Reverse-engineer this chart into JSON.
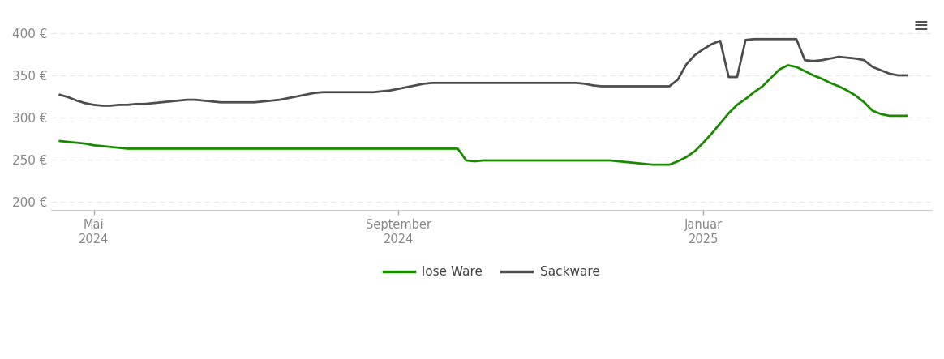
{
  "background_color": "#ffffff",
  "grid_color": "#e8e8e8",
  "ylim": [
    190,
    425
  ],
  "yticks": [
    200,
    250,
    300,
    350,
    400
  ],
  "ytick_labels": [
    "200 €",
    "250 €",
    "300 €",
    "350 €",
    "400 €"
  ],
  "xtick_positions": [
    4,
    40,
    76
  ],
  "xtick_labels": [
    "Mai\n2024",
    "September\n2024",
    "Januar\n2025"
  ],
  "lose_ware_color": "#1a8a00",
  "sackware_color": "#4d4d4d",
  "lose_ware_lw": 2.0,
  "sackware_lw": 2.0,
  "legend_labels": [
    "lose Ware",
    "Sackware"
  ],
  "xlim": [
    -1,
    103
  ],
  "lose_ware_x": [
    0,
    1,
    2,
    3,
    4,
    5,
    6,
    7,
    8,
    9,
    10,
    11,
    12,
    13,
    14,
    15,
    16,
    17,
    18,
    19,
    20,
    21,
    22,
    23,
    24,
    25,
    26,
    27,
    28,
    29,
    30,
    31,
    32,
    33,
    34,
    35,
    36,
    37,
    38,
    39,
    40,
    41,
    42,
    43,
    44,
    45,
    46,
    47,
    48,
    49,
    50,
    51,
    52,
    53,
    54,
    55,
    56,
    57,
    58,
    59,
    60,
    61,
    62,
    63,
    64,
    65,
    66,
    67,
    68,
    69,
    70,
    71,
    72,
    73,
    74,
    75,
    76,
    77,
    78,
    79,
    80,
    81,
    82,
    83,
    84,
    85,
    86,
    87,
    88,
    89,
    90,
    91,
    92,
    93,
    94,
    95,
    96,
    97,
    98,
    99,
    100
  ],
  "lose_ware_y": [
    272,
    271,
    270,
    269,
    267,
    266,
    265,
    264,
    263,
    263,
    263,
    263,
    263,
    263,
    263,
    263,
    263,
    263,
    263,
    263,
    263,
    263,
    263,
    263,
    263,
    263,
    263,
    263,
    263,
    263,
    263,
    263,
    263,
    263,
    263,
    263,
    263,
    263,
    263,
    263,
    263,
    263,
    263,
    263,
    263,
    263,
    263,
    263,
    249,
    248,
    249,
    249,
    249,
    249,
    249,
    249,
    249,
    249,
    249,
    249,
    249,
    249,
    249,
    249,
    249,
    249,
    248,
    247,
    246,
    245,
    244,
    244,
    244,
    248,
    253,
    260,
    270,
    281,
    293,
    305,
    315,
    322,
    330,
    337,
    347,
    357,
    362,
    360,
    355,
    350,
    346,
    341,
    337,
    332,
    326,
    318,
    308,
    304,
    302,
    302,
    302
  ],
  "sackware_x": [
    0,
    1,
    2,
    3,
    4,
    5,
    6,
    7,
    8,
    9,
    10,
    11,
    12,
    13,
    14,
    15,
    16,
    17,
    18,
    19,
    20,
    21,
    22,
    23,
    24,
    25,
    26,
    27,
    28,
    29,
    30,
    31,
    32,
    33,
    34,
    35,
    36,
    37,
    38,
    39,
    40,
    41,
    42,
    43,
    44,
    45,
    46,
    47,
    48,
    49,
    50,
    51,
    52,
    53,
    54,
    55,
    56,
    57,
    58,
    59,
    60,
    61,
    62,
    63,
    64,
    65,
    66,
    67,
    68,
    69,
    70,
    71,
    72,
    73,
    74,
    75,
    76,
    77,
    78,
    79,
    80,
    81,
    82,
    83,
    84,
    85,
    86,
    87,
    88,
    89,
    90,
    91,
    92,
    93,
    94,
    95,
    96,
    97,
    98,
    99,
    100
  ],
  "sackware_y": [
    327,
    324,
    320,
    317,
    315,
    314,
    314,
    315,
    315,
    316,
    316,
    317,
    318,
    319,
    320,
    321,
    321,
    320,
    319,
    318,
    318,
    318,
    318,
    318,
    319,
    320,
    321,
    323,
    325,
    327,
    329,
    330,
    330,
    330,
    330,
    330,
    330,
    330,
    331,
    332,
    334,
    336,
    338,
    340,
    341,
    341,
    341,
    341,
    341,
    341,
    341,
    341,
    341,
    341,
    341,
    341,
    341,
    341,
    341,
    341,
    341,
    341,
    340,
    338,
    337,
    337,
    337,
    337,
    337,
    337,
    337,
    337,
    337,
    345,
    363,
    374,
    381,
    387,
    391,
    348,
    348,
    392,
    393,
    393,
    393,
    393,
    393,
    393,
    368,
    367,
    368,
    370,
    372,
    371,
    370,
    368,
    360,
    356,
    352,
    350,
    350
  ]
}
